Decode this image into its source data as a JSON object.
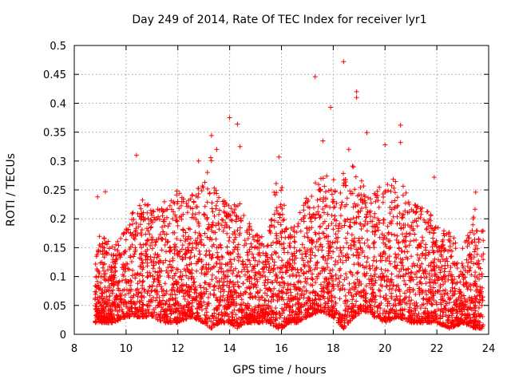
{
  "chart_data": {
    "type": "scatter",
    "title": "Day 249 of 2014, Rate Of TEC Index for receiver lyr1",
    "xlabel": "GPS time / hours",
    "ylabel": "ROTI / TECUs",
    "xlim": [
      8,
      24
    ],
    "ylim": [
      0,
      0.5
    ],
    "xticks": [
      "8",
      "10",
      "12",
      "14",
      "16",
      "18",
      "20",
      "22",
      "24"
    ],
    "yticks": [
      "0",
      "0.05",
      "0.1",
      "0.15",
      "0.2",
      "0.25",
      "0.3",
      "0.35",
      "0.4",
      "0.45",
      "0.5"
    ],
    "grid": true,
    "marker": "+",
    "color": "#ff0000",
    "x_range_observed": [
      8.8,
      23.8
    ],
    "series_envelope": {
      "x": [
        8.8,
        9.0,
        9.5,
        10.0,
        10.5,
        11.0,
        11.5,
        12.0,
        12.5,
        13.0,
        13.3,
        13.6,
        14.0,
        14.3,
        14.6,
        15.0,
        15.5,
        15.8,
        16.0,
        16.3,
        16.6,
        17.0,
        17.5,
        18.0,
        18.4,
        18.8,
        19.2,
        19.6,
        20.0,
        20.5,
        21.0,
        21.5,
        22.0,
        22.5,
        23.0,
        23.5,
        23.8
      ],
      "typical_high": [
        0.12,
        0.18,
        0.15,
        0.19,
        0.24,
        0.22,
        0.23,
        0.25,
        0.24,
        0.27,
        0.31,
        0.25,
        0.22,
        0.24,
        0.2,
        0.18,
        0.17,
        0.28,
        0.26,
        0.18,
        0.2,
        0.24,
        0.28,
        0.27,
        0.29,
        0.3,
        0.26,
        0.25,
        0.26,
        0.28,
        0.23,
        0.22,
        0.2,
        0.18,
        0.15,
        0.22,
        0.18
      ],
      "typical_low": [
        0.02,
        0.02,
        0.02,
        0.03,
        0.03,
        0.03,
        0.02,
        0.02,
        0.03,
        0.02,
        0.01,
        0.02,
        0.02,
        0.01,
        0.02,
        0.02,
        0.02,
        0.01,
        0.01,
        0.02,
        0.02,
        0.03,
        0.04,
        0.03,
        0.01,
        0.03,
        0.04,
        0.03,
        0.02,
        0.03,
        0.02,
        0.02,
        0.02,
        0.01,
        0.02,
        0.01,
        0.01
      ]
    },
    "notable_points": [
      {
        "x": 18.4,
        "y": 0.472
      },
      {
        "x": 17.3,
        "y": 0.446
      },
      {
        "x": 18.9,
        "y": 0.42
      },
      {
        "x": 18.9,
        "y": 0.41
      },
      {
        "x": 17.9,
        "y": 0.393
      },
      {
        "x": 14.0,
        "y": 0.375
      },
      {
        "x": 14.3,
        "y": 0.364
      },
      {
        "x": 20.6,
        "y": 0.362
      },
      {
        "x": 19.3,
        "y": 0.349
      },
      {
        "x": 13.3,
        "y": 0.344
      },
      {
        "x": 17.6,
        "y": 0.335
      },
      {
        "x": 20.0,
        "y": 0.328
      },
      {
        "x": 20.6,
        "y": 0.332
      },
      {
        "x": 14.4,
        "y": 0.325
      },
      {
        "x": 18.6,
        "y": 0.32
      },
      {
        "x": 13.5,
        "y": 0.32
      },
      {
        "x": 10.4,
        "y": 0.31
      },
      {
        "x": 15.9,
        "y": 0.307
      },
      {
        "x": 12.8,
        "y": 0.3
      },
      {
        "x": 21.9,
        "y": 0.272
      },
      {
        "x": 9.2,
        "y": 0.247
      },
      {
        "x": 8.9,
        "y": 0.238
      },
      {
        "x": 23.5,
        "y": 0.246
      }
    ]
  }
}
